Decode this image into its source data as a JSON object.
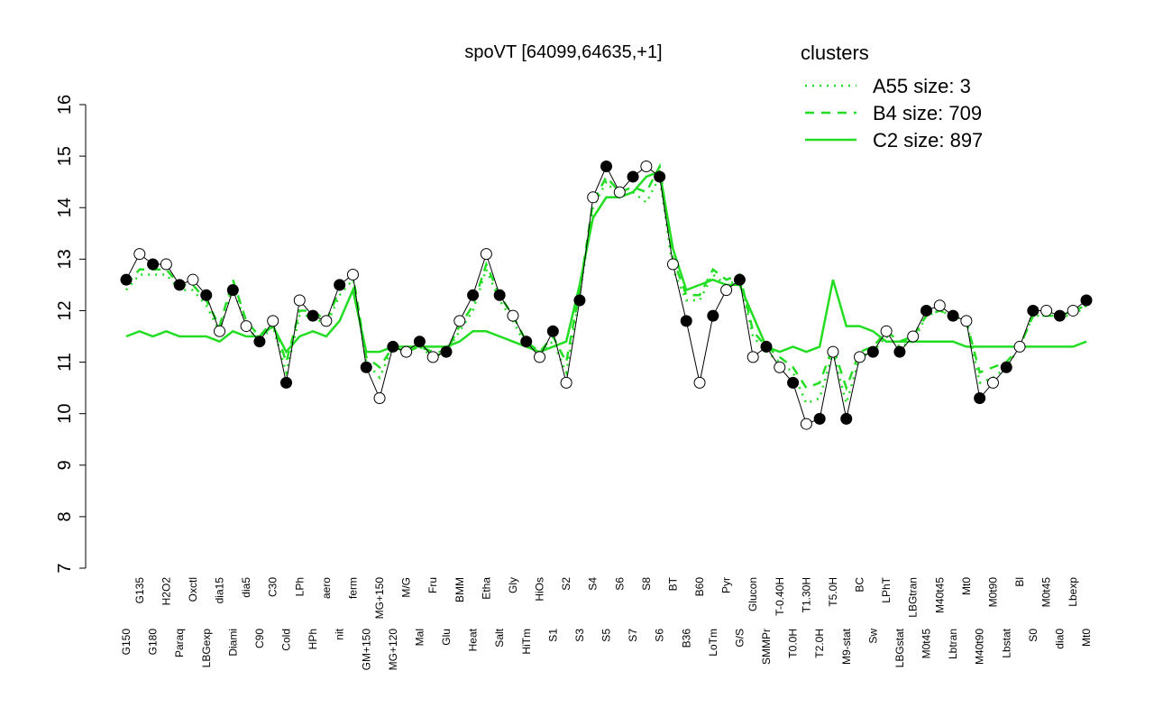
{
  "chart_data": {
    "type": "line",
    "title": "spoVT [64099,64635,+1]",
    "legend_title": "clusters",
    "legend_color": "#22dd22",
    "categories": [
      "G150",
      "G135",
      "G180",
      "H2O2",
      "Paraq",
      "Oxctl",
      "LBGexp",
      "dia15",
      "Diami",
      "dia5",
      "C90",
      "C30",
      "Cold",
      "LPh",
      "HPh",
      "aero",
      "nit",
      "ferm",
      "GM+150",
      "MG+150",
      "MG+120",
      "M/G",
      "Mal",
      "Fru",
      "Glu",
      "BMM",
      "Heat",
      "Etha",
      "Salt",
      "Gly",
      "HiTm",
      "HiOs",
      "S1",
      "S2",
      "S3",
      "S4",
      "S5",
      "S6",
      "S7",
      "S8",
      "S6",
      "BT",
      "B36",
      "B60",
      "LoTm",
      "Pyr",
      "G/S",
      "Glucon",
      "SMMPr",
      "T-0.40H",
      "T0.0H",
      "T1.30H",
      "T2.0H",
      "T5.0H",
      "M9-stat",
      "BC",
      "Sw",
      "LPhT",
      "LBGstat",
      "LBGtran",
      "M0t45",
      "M40t45",
      "Lbtran",
      "Mt0",
      "M40t90",
      "M0t90",
      "Lbstat",
      "Bl",
      "S0",
      "M0t45",
      "dia0",
      "Lbexp",
      "Mt0"
    ],
    "values": [
      12.6,
      13.1,
      12.9,
      12.9,
      12.5,
      12.6,
      12.3,
      11.6,
      12.4,
      11.7,
      11.4,
      11.8,
      10.6,
      12.2,
      11.9,
      11.8,
      12.5,
      12.7,
      10.9,
      10.3,
      11.3,
      11.2,
      11.4,
      11.1,
      11.2,
      11.8,
      12.3,
      13.1,
      12.3,
      11.9,
      11.4,
      11.1,
      11.6,
      10.6,
      12.2,
      14.2,
      14.8,
      14.3,
      14.6,
      14.8,
      14.6,
      12.9,
      11.8,
      10.6,
      11.9,
      12.4,
      12.6,
      11.1,
      11.3,
      10.9,
      10.6,
      9.8,
      9.9,
      11.2,
      9.9,
      11.1,
      11.2,
      11.6,
      11.2,
      11.5,
      12.0,
      12.1,
      11.9,
      11.8,
      10.3,
      10.6,
      10.9,
      11.3,
      12.0,
      12.0,
      11.9,
      12.0,
      12.2
    ],
    "series": [
      {
        "name": "A55 size: 3",
        "color": "#22dd22",
        "dash": "2,6",
        "values": [
          12.4,
          12.7,
          12.7,
          12.7,
          12.4,
          12.4,
          12.1,
          11.6,
          12.5,
          11.7,
          11.4,
          11.7,
          10.8,
          11.9,
          11.9,
          11.7,
          12.3,
          12.6,
          11.0,
          10.7,
          11.3,
          11.2,
          11.3,
          11.1,
          11.2,
          11.6,
          12.0,
          12.8,
          12.2,
          11.8,
          11.3,
          11.2,
          11.4,
          10.8,
          12.3,
          14.0,
          14.5,
          14.2,
          14.3,
          14.1,
          14.6,
          12.8,
          12.2,
          12.2,
          12.7,
          12.5,
          12.6,
          11.5,
          11.2,
          11.0,
          10.8,
          10.2,
          10.3,
          11.2,
          10.2,
          11.1,
          11.2,
          11.5,
          11.3,
          11.4,
          11.9,
          12.0,
          11.9,
          11.8,
          10.6,
          10.7,
          10.9,
          11.3,
          11.9,
          11.9,
          11.9,
          11.9,
          12.1
        ]
      },
      {
        "name": "B4 size: 709",
        "color": "#22dd22",
        "dash": "10,8",
        "values": [
          12.5,
          12.8,
          12.8,
          12.8,
          12.5,
          12.5,
          12.2,
          11.7,
          12.6,
          11.8,
          11.5,
          11.8,
          11.0,
          12.0,
          12.0,
          11.8,
          12.4,
          12.7,
          11.1,
          10.9,
          11.3,
          11.2,
          11.3,
          11.2,
          11.2,
          11.7,
          12.1,
          12.9,
          12.3,
          11.9,
          11.4,
          11.2,
          11.5,
          11.0,
          12.4,
          14.1,
          14.6,
          14.3,
          14.4,
          14.3,
          14.8,
          13.0,
          12.3,
          12.3,
          12.8,
          12.6,
          12.7,
          11.6,
          11.3,
          11.1,
          10.9,
          10.5,
          10.6,
          11.3,
          10.5,
          11.2,
          11.3,
          11.6,
          11.4,
          11.5,
          11.9,
          12.0,
          11.9,
          11.8,
          10.8,
          10.9,
          11.0,
          11.3,
          11.9,
          11.9,
          11.9,
          12.0,
          12.1
        ]
      },
      {
        "name": "C2 size: 897",
        "color": "#22dd22",
        "dash": "",
        "values": [
          11.5,
          11.6,
          11.5,
          11.6,
          11.5,
          11.5,
          11.5,
          11.4,
          11.6,
          11.5,
          11.5,
          11.7,
          11.2,
          11.5,
          11.6,
          11.5,
          11.8,
          12.4,
          11.2,
          11.2,
          11.3,
          11.3,
          11.3,
          11.3,
          11.3,
          11.4,
          11.6,
          11.6,
          11.5,
          11.4,
          11.3,
          11.2,
          11.3,
          11.4,
          12.5,
          13.8,
          14.2,
          14.2,
          14.3,
          14.6,
          14.7,
          13.2,
          12.4,
          12.5,
          12.6,
          12.5,
          12.5,
          11.9,
          11.3,
          11.2,
          11.3,
          11.2,
          11.3,
          12.6,
          11.7,
          11.7,
          11.6,
          11.4,
          11.4,
          11.4,
          11.4,
          11.4,
          11.4,
          11.3,
          11.3,
          11.3,
          11.3,
          11.3,
          11.3,
          11.3,
          11.3,
          11.3,
          11.4
        ]
      }
    ],
    "ylim": [
      7,
      16
    ],
    "yticks": [
      7,
      8,
      9,
      10,
      11,
      12,
      13,
      14,
      15,
      16
    ]
  }
}
